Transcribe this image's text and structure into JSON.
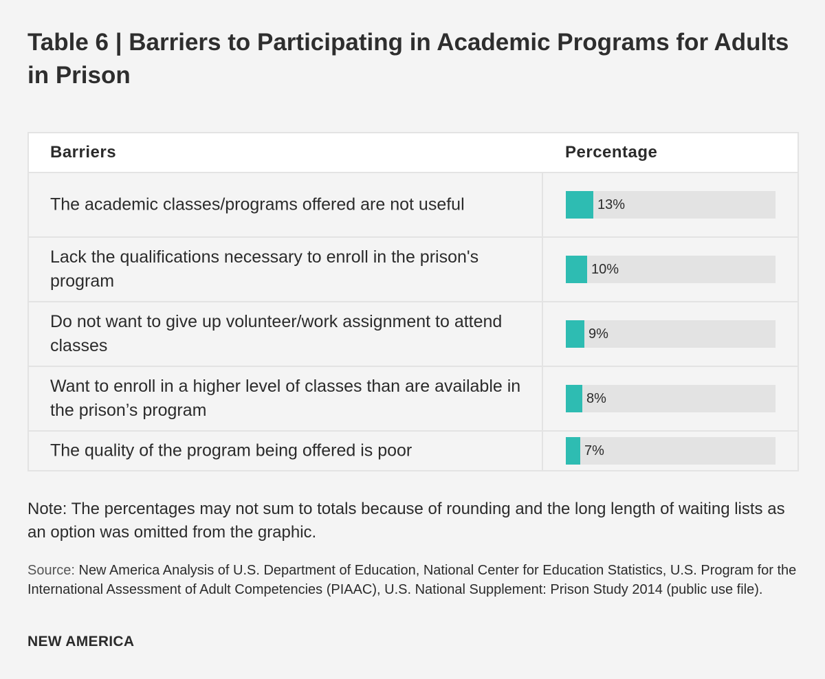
{
  "title": "Table 6 | Barriers to Participating in Academic Programs for Adults in Prison",
  "table": {
    "header_barriers": "Barriers",
    "header_percentage": "Percentage"
  },
  "chart_data": {
    "type": "bar",
    "orientation": "horizontal",
    "title": "Table 6 | Barriers to Participating in Academic Programs for Adults in Prison",
    "xlabel": "Percentage",
    "ylabel": "Barriers",
    "xlim": [
      0,
      100
    ],
    "categories": [
      "The academic classes/programs offered are not useful",
      "Lack the qualifications necessary to enroll in the prison's program",
      "Do not want to give up volunteer/work assignment to attend classes",
      "Want to enroll in a higher level of classes than are available in the prison’s program",
      "The quality of the program being offered is poor"
    ],
    "values": [
      13,
      10,
      9,
      8,
      7
    ],
    "value_labels": [
      "13%",
      "10%",
      "9%",
      "8%",
      "7%"
    ],
    "bar_color": "#2ebcb2",
    "track_color": "#e3e3e3"
  },
  "note": "Note: The percentages may not sum to totals because of rounding and the long length of waiting lists as an option was omitted from the graphic.",
  "source": {
    "label": "Source:",
    "text": " New America Analysis of U.S. Department of Education, National Center for Education Statistics, U.S. Program for the International Assessment of Adult Competencies (PIAAC), U.S. National Supplement: Prison Study 2014 (public use file)."
  },
  "brand": "NEW AMERICA"
}
